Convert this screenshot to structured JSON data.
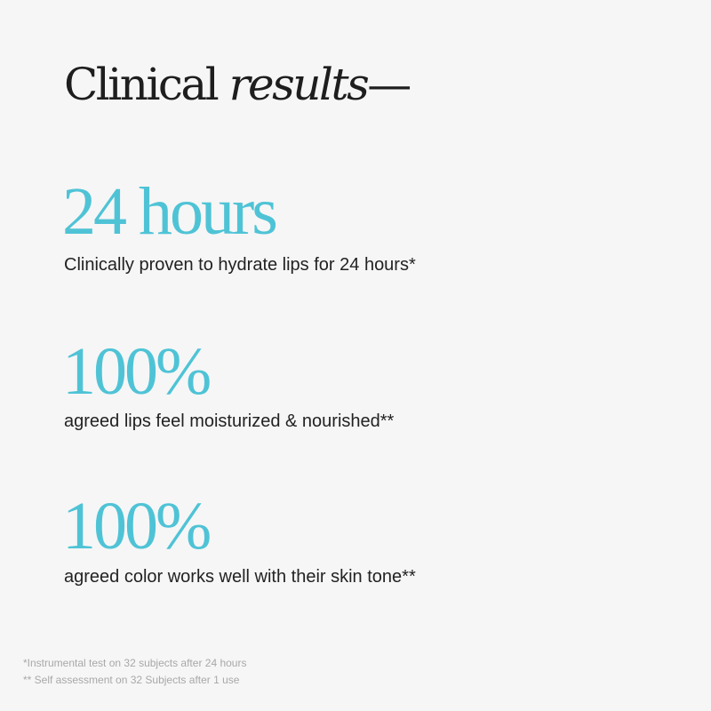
{
  "heading": {
    "regular": "Clinical",
    "italic": "results",
    "dash": "—"
  },
  "stats": [
    {
      "value": "24 hours",
      "description": "Clinically proven to hydrate lips for 24 hours*"
    },
    {
      "value": "100%",
      "description": "agreed lips feel moisturized & nourished**"
    },
    {
      "value": "100%",
      "description": "agreed color works well with their skin tone**"
    }
  ],
  "footnotes": [
    "*Instrumental test on 32 subjects after 24 hours",
    "** Self assessment on 32 Subjects after 1 use"
  ],
  "colors": {
    "accent": "#4fc3d6",
    "background": "#f6f6f6",
    "text": "#1e1e1e",
    "footnote": "#a8a8a8"
  }
}
